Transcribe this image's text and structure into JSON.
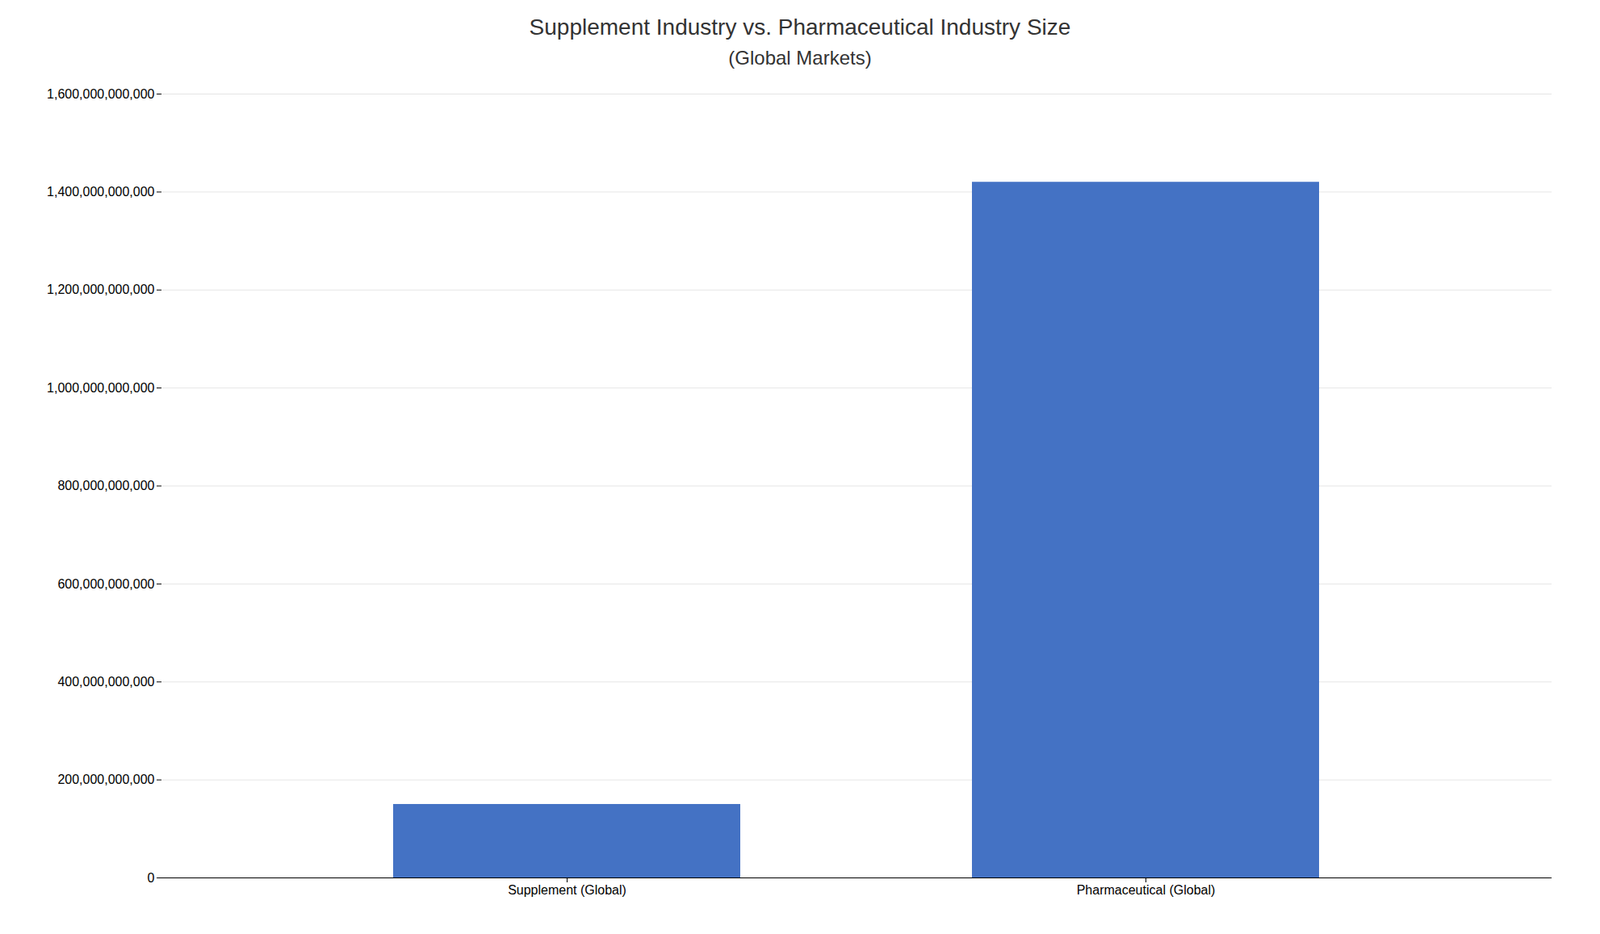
{
  "chart_data": {
    "type": "bar",
    "title": "Supplement Industry vs. Pharmaceutical Industry Size",
    "subtitle": "(Global Markets)",
    "categories": [
      "Supplement (Global)",
      "Pharmaceutical (Global)"
    ],
    "values": [
      150000000000,
      1420000000000
    ],
    "color": "#4472C4",
    "ylim": [
      0,
      1600000000000
    ],
    "yticks": [
      0,
      {
        "value": 200000000000,
        "label": "200,000,000,000"
      },
      {
        "value": 400000000000,
        "label": "400,000,000,000"
      },
      {
        "value": 600000000000,
        "label": "600,000,000,000"
      },
      {
        "value": 800000000000,
        "label": "800,000,000,000"
      },
      {
        "value": 1000000000000,
        "label": "1,000,000,000,000"
      },
      {
        "value": 1200000000000,
        "label": "1,200,000,000,000"
      },
      {
        "value": 1400000000000,
        "label": "1,400,000,000,000"
      },
      {
        "value": 1600000000000,
        "label": "1,600,000,000,000"
      }
    ],
    "grid": true
  }
}
